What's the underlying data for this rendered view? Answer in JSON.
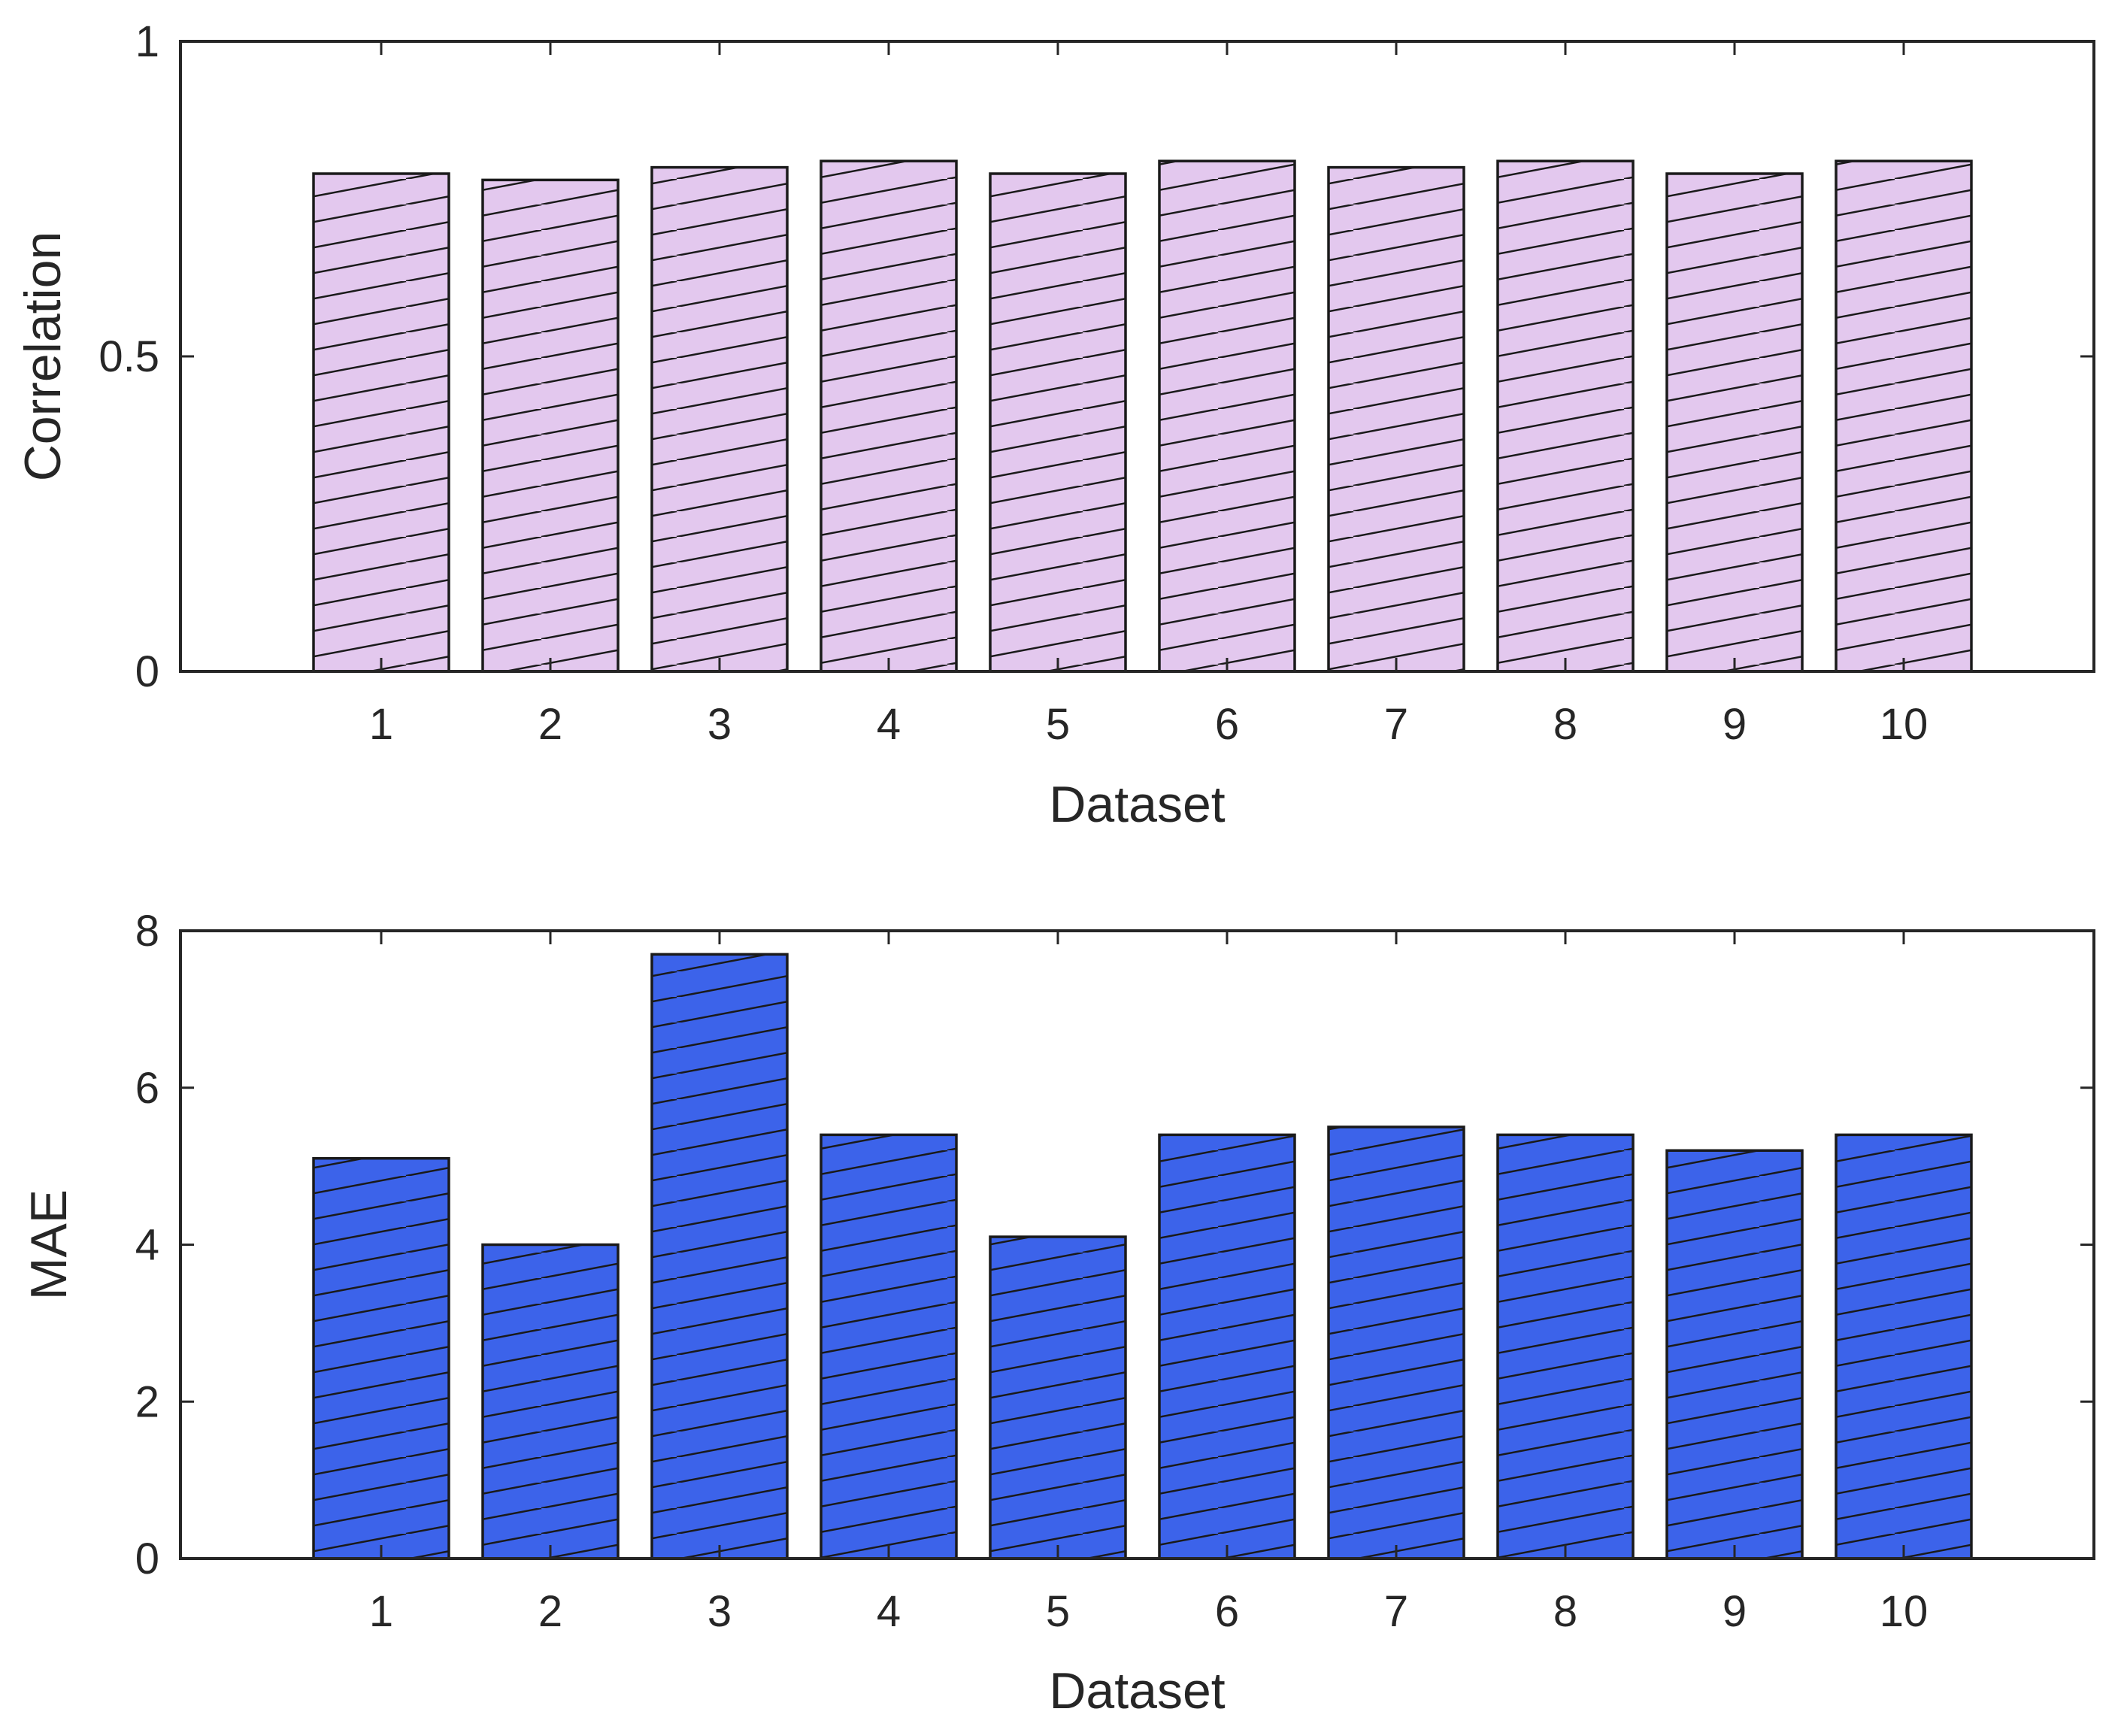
{
  "chart_data": [
    {
      "type": "bar",
      "categories": [
        "1",
        "2",
        "3",
        "4",
        "5",
        "6",
        "7",
        "8",
        "9",
        "10"
      ],
      "values": [
        0.79,
        0.78,
        0.8,
        0.81,
        0.79,
        0.81,
        0.8,
        0.81,
        0.79,
        0.81
      ],
      "xlabel": "Dataset",
      "ylabel": "Correlation",
      "ylim": [
        0,
        1
      ],
      "yticks": [
        "0",
        "0.5",
        "1"
      ],
      "grid": false,
      "bar_color": "#e3c8ee",
      "hatch": "diagonal"
    },
    {
      "type": "bar",
      "categories": [
        "1",
        "2",
        "3",
        "4",
        "5",
        "6",
        "7",
        "8",
        "9",
        "10"
      ],
      "values": [
        5.1,
        4.0,
        7.7,
        5.4,
        4.1,
        5.4,
        5.5,
        5.4,
        5.2,
        5.4
      ],
      "xlabel": "Dataset",
      "ylabel": "MAE",
      "ylim": [
        0,
        8
      ],
      "yticks": [
        "0",
        "2",
        "4",
        "6",
        "8"
      ],
      "grid": false,
      "bar_color": "#3c63ea",
      "hatch": "diagonal"
    }
  ]
}
